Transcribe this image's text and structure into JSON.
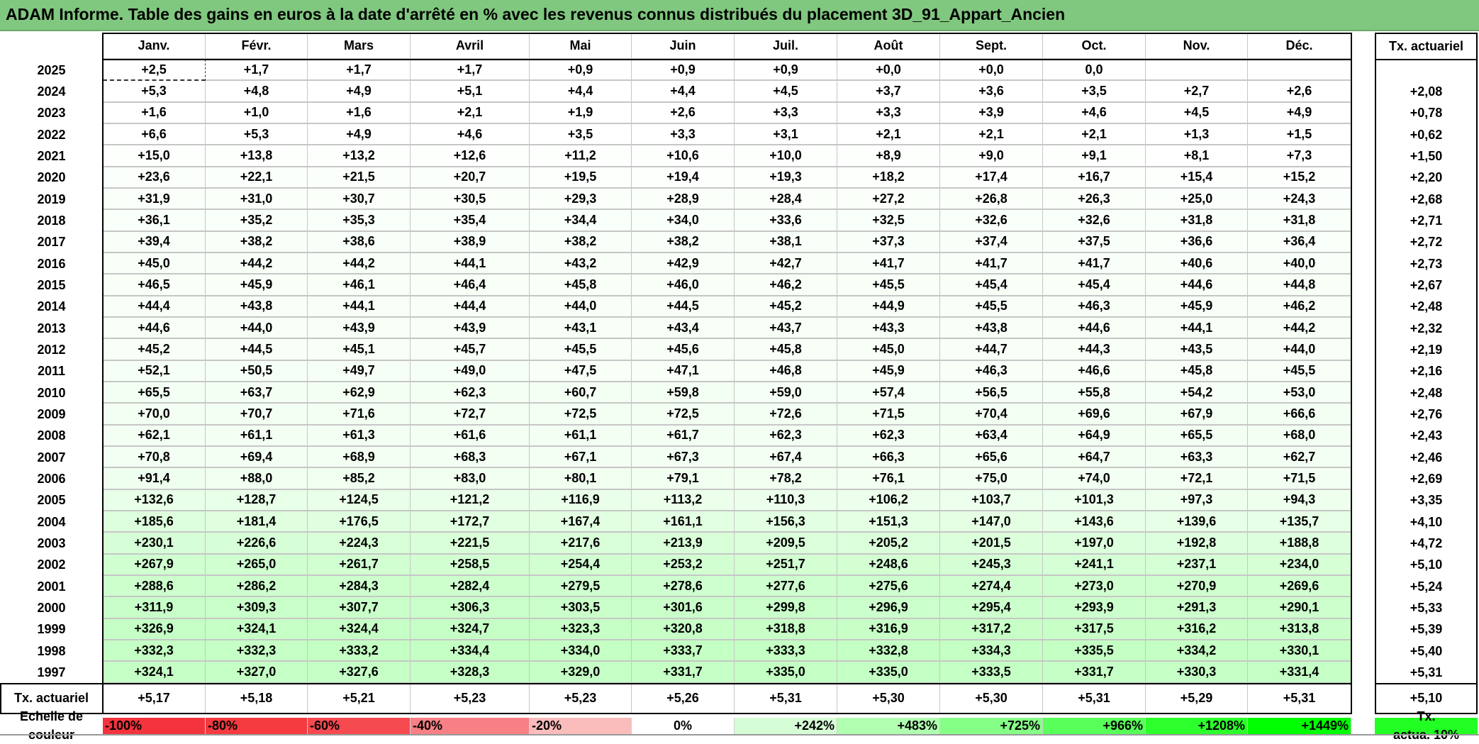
{
  "title": "ADAM Informe. Table des gains en euros à la date d'arrêté en % avec les revenus connus distribués du placement 3D_91_Appart_Ancien",
  "header": {
    "months": [
      "Janv.",
      "Févr.",
      "Mars",
      "Avril",
      "Mai",
      "Juin",
      "Juil.",
      "Août",
      "Sept.",
      "Oct.",
      "Nov.",
      "Déc."
    ],
    "tx_header": "Tx. actuariel"
  },
  "rows": [
    {
      "year": "2025",
      "values": [
        "+2,5",
        "+1,7",
        "+1,7",
        "+1,7",
        "+0,9",
        "+0,9",
        "+0,9",
        "+0,0",
        "+0,0",
        "0,0",
        "",
        ""
      ],
      "tx": ""
    },
    {
      "year": "2024",
      "values": [
        "+5,3",
        "+4,8",
        "+4,9",
        "+5,1",
        "+4,4",
        "+4,4",
        "+4,5",
        "+3,7",
        "+3,6",
        "+3,5",
        "+2,7",
        "+2,6"
      ],
      "tx": "+2,08"
    },
    {
      "year": "2023",
      "values": [
        "+1,6",
        "+1,0",
        "+1,6",
        "+2,1",
        "+1,9",
        "+2,6",
        "+3,3",
        "+3,3",
        "+3,9",
        "+4,6",
        "+4,5",
        "+4,9"
      ],
      "tx": "+0,78"
    },
    {
      "year": "2022",
      "values": [
        "+6,6",
        "+5,3",
        "+4,9",
        "+4,6",
        "+3,5",
        "+3,3",
        "+3,1",
        "+2,1",
        "+2,1",
        "+2,1",
        "+1,3",
        "+1,5"
      ],
      "tx": "+0,62"
    },
    {
      "year": "2021",
      "values": [
        "+15,0",
        "+13,8",
        "+13,2",
        "+12,6",
        "+11,2",
        "+10,6",
        "+10,0",
        "+8,9",
        "+9,0",
        "+9,1",
        "+8,1",
        "+7,3"
      ],
      "tx": "+1,50"
    },
    {
      "year": "2020",
      "values": [
        "+23,6",
        "+22,1",
        "+21,5",
        "+20,7",
        "+19,5",
        "+19,4",
        "+19,3",
        "+18,2",
        "+17,4",
        "+16,7",
        "+15,4",
        "+15,2"
      ],
      "tx": "+2,20"
    },
    {
      "year": "2019",
      "values": [
        "+31,9",
        "+31,0",
        "+30,7",
        "+30,5",
        "+29,3",
        "+28,9",
        "+28,4",
        "+27,2",
        "+26,8",
        "+26,3",
        "+25,0",
        "+24,3"
      ],
      "tx": "+2,68"
    },
    {
      "year": "2018",
      "values": [
        "+36,1",
        "+35,2",
        "+35,3",
        "+35,4",
        "+34,4",
        "+34,0",
        "+33,6",
        "+32,5",
        "+32,6",
        "+32,6",
        "+31,8",
        "+31,8"
      ],
      "tx": "+2,71"
    },
    {
      "year": "2017",
      "values": [
        "+39,4",
        "+38,2",
        "+38,6",
        "+38,9",
        "+38,2",
        "+38,2",
        "+38,1",
        "+37,3",
        "+37,4",
        "+37,5",
        "+36,6",
        "+36,4"
      ],
      "tx": "+2,72"
    },
    {
      "year": "2016",
      "values": [
        "+45,0",
        "+44,2",
        "+44,2",
        "+44,1",
        "+43,2",
        "+42,9",
        "+42,7",
        "+41,7",
        "+41,7",
        "+41,7",
        "+40,6",
        "+40,0"
      ],
      "tx": "+2,73"
    },
    {
      "year": "2015",
      "values": [
        "+46,5",
        "+45,9",
        "+46,1",
        "+46,4",
        "+45,8",
        "+46,0",
        "+46,2",
        "+45,5",
        "+45,4",
        "+45,4",
        "+44,6",
        "+44,8"
      ],
      "tx": "+2,67"
    },
    {
      "year": "2014",
      "values": [
        "+44,4",
        "+43,8",
        "+44,1",
        "+44,4",
        "+44,0",
        "+44,5",
        "+45,2",
        "+44,9",
        "+45,5",
        "+46,3",
        "+45,9",
        "+46,2"
      ],
      "tx": "+2,48"
    },
    {
      "year": "2013",
      "values": [
        "+44,6",
        "+44,0",
        "+43,9",
        "+43,9",
        "+43,1",
        "+43,4",
        "+43,7",
        "+43,3",
        "+43,8",
        "+44,6",
        "+44,1",
        "+44,2"
      ],
      "tx": "+2,32"
    },
    {
      "year": "2012",
      "values": [
        "+45,2",
        "+44,5",
        "+45,1",
        "+45,7",
        "+45,5",
        "+45,6",
        "+45,8",
        "+45,0",
        "+44,7",
        "+44,3",
        "+43,5",
        "+44,0"
      ],
      "tx": "+2,19"
    },
    {
      "year": "2011",
      "values": [
        "+52,1",
        "+50,5",
        "+49,7",
        "+49,0",
        "+47,5",
        "+47,1",
        "+46,8",
        "+45,9",
        "+46,3",
        "+46,6",
        "+45,8",
        "+45,5"
      ],
      "tx": "+2,16"
    },
    {
      "year": "2010",
      "values": [
        "+65,5",
        "+63,7",
        "+62,9",
        "+62,3",
        "+60,7",
        "+59,8",
        "+59,0",
        "+57,4",
        "+56,5",
        "+55,8",
        "+54,2",
        "+53,0"
      ],
      "tx": "+2,48"
    },
    {
      "year": "2009",
      "values": [
        "+70,0",
        "+70,7",
        "+71,6",
        "+72,7",
        "+72,5",
        "+72,5",
        "+72,6",
        "+71,5",
        "+70,4",
        "+69,6",
        "+67,9",
        "+66,6"
      ],
      "tx": "+2,76"
    },
    {
      "year": "2008",
      "values": [
        "+62,1",
        "+61,1",
        "+61,3",
        "+61,6",
        "+61,1",
        "+61,7",
        "+62,3",
        "+62,3",
        "+63,4",
        "+64,9",
        "+65,5",
        "+68,0"
      ],
      "tx": "+2,43"
    },
    {
      "year": "2007",
      "values": [
        "+70,8",
        "+69,4",
        "+68,9",
        "+68,3",
        "+67,1",
        "+67,3",
        "+67,4",
        "+66,3",
        "+65,6",
        "+64,7",
        "+63,3",
        "+62,7"
      ],
      "tx": "+2,46"
    },
    {
      "year": "2006",
      "values": [
        "+91,4",
        "+88,0",
        "+85,2",
        "+83,0",
        "+80,1",
        "+79,1",
        "+78,2",
        "+76,1",
        "+75,0",
        "+74,0",
        "+72,1",
        "+71,5"
      ],
      "tx": "+2,69"
    },
    {
      "year": "2005",
      "values": [
        "+132,6",
        "+128,7",
        "+124,5",
        "+121,2",
        "+116,9",
        "+113,2",
        "+110,3",
        "+106,2",
        "+103,7",
        "+101,3",
        "+97,3",
        "+94,3"
      ],
      "tx": "+3,35"
    },
    {
      "year": "2004",
      "values": [
        "+185,6",
        "+181,4",
        "+176,5",
        "+172,7",
        "+167,4",
        "+161,1",
        "+156,3",
        "+151,3",
        "+147,0",
        "+143,6",
        "+139,6",
        "+135,7"
      ],
      "tx": "+4,10"
    },
    {
      "year": "2003",
      "values": [
        "+230,1",
        "+226,6",
        "+224,3",
        "+221,5",
        "+217,6",
        "+213,9",
        "+209,5",
        "+205,2",
        "+201,5",
        "+197,0",
        "+192,8",
        "+188,8"
      ],
      "tx": "+4,72"
    },
    {
      "year": "2002",
      "values": [
        "+267,9",
        "+265,0",
        "+261,7",
        "+258,5",
        "+254,4",
        "+253,2",
        "+251,7",
        "+248,6",
        "+245,3",
        "+241,1",
        "+237,1",
        "+234,0"
      ],
      "tx": "+5,10"
    },
    {
      "year": "2001",
      "values": [
        "+288,6",
        "+286,2",
        "+284,3",
        "+282,4",
        "+279,5",
        "+278,6",
        "+277,6",
        "+275,6",
        "+274,4",
        "+273,0",
        "+270,9",
        "+269,6"
      ],
      "tx": "+5,24"
    },
    {
      "year": "2000",
      "values": [
        "+311,9",
        "+309,3",
        "+307,7",
        "+306,3",
        "+303,5",
        "+301,6",
        "+299,8",
        "+296,9",
        "+295,4",
        "+293,9",
        "+291,3",
        "+290,1"
      ],
      "tx": "+5,33"
    },
    {
      "year": "1999",
      "values": [
        "+326,9",
        "+324,1",
        "+324,4",
        "+324,7",
        "+323,3",
        "+320,8",
        "+318,8",
        "+316,9",
        "+317,2",
        "+317,5",
        "+316,2",
        "+313,8"
      ],
      "tx": "+5,39"
    },
    {
      "year": "1998",
      "values": [
        "+332,3",
        "+332,3",
        "+333,2",
        "+334,4",
        "+334,0",
        "+333,7",
        "+333,3",
        "+332,8",
        "+334,3",
        "+335,5",
        "+334,2",
        "+330,1"
      ],
      "tx": "+5,40"
    },
    {
      "year": "1997",
      "values": [
        "+324,1",
        "+327,0",
        "+327,6",
        "+328,3",
        "+329,0",
        "+331,7",
        "+335,0",
        "+335,0",
        "+333,5",
        "+331,7",
        "+330,3",
        "+331,4"
      ],
      "tx": "+5,31"
    }
  ],
  "footer": {
    "label": "Tx. actuariel",
    "values": [
      "+5,17",
      "+5,18",
      "+5,21",
      "+5,23",
      "+5,23",
      "+5,26",
      "+5,31",
      "+5,30",
      "+5,30",
      "+5,31",
      "+5,29",
      "+5,31"
    ],
    "tx": "+5,10"
  },
  "scale": {
    "label": "Echelle de\ncouleur",
    "cells": [
      {
        "label": "-100%",
        "color": "#f5333d"
      },
      {
        "label": "-80%",
        "color": "#f53a40"
      },
      {
        "label": "-60%",
        "color": "#f54a50"
      },
      {
        "label": "-40%",
        "color": "#f88085"
      },
      {
        "label": "-20%",
        "color": "#fbbcbc"
      },
      {
        "label": "0%",
        "color": "#ffffff"
      },
      {
        "label": "+242%",
        "color": "#d6fed6"
      },
      {
        "label": "+483%",
        "color": "#b0ffb0"
      },
      {
        "label": "+725%",
        "color": "#86ff86"
      },
      {
        "label": "+966%",
        "color": "#58ff58"
      },
      {
        "label": "+1208%",
        "color": "#2cff2c"
      },
      {
        "label": "+1449%",
        "color": "#00ff00"
      }
    ],
    "tx_label": "Tx.\nactua. 10%",
    "tx_color": "#22ff22"
  },
  "colors": {
    "title_bar": "#80c77f",
    "positive_max": "#00ff00",
    "negative_max": "#f5333d"
  }
}
